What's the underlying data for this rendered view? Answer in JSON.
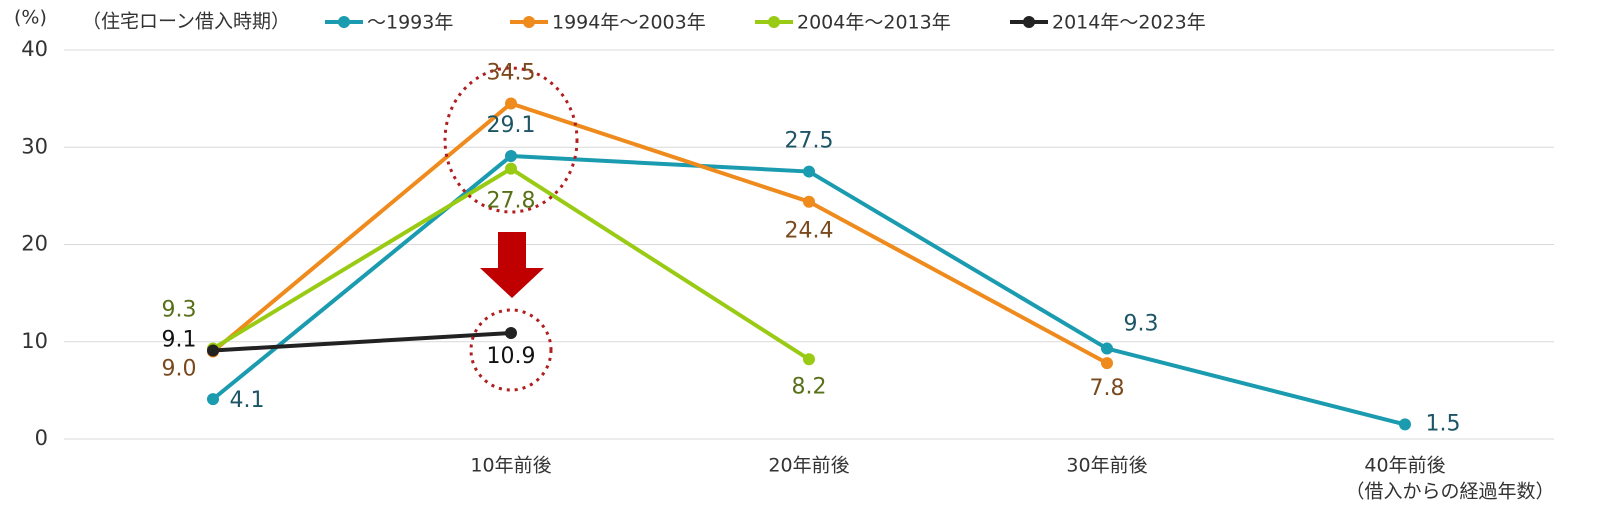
{
  "chart_data": {
    "type": "line",
    "y_label": "(%)",
    "legend_title": "（住宅ローン借入時期）",
    "x_label": "（借入からの経過年数）",
    "categories": [
      null,
      "10年前後",
      "20年前後",
      "30年前後",
      "40年前後"
    ],
    "ylim": [
      0,
      40
    ],
    "yticks": [
      0,
      10,
      20,
      30,
      40
    ],
    "grid": true,
    "legend": "top",
    "series": [
      {
        "name": "～1993年",
        "color": "#1a9bb0",
        "label_color": "#1d5566",
        "values": [
          4.1,
          29.1,
          27.5,
          9.3,
          1.5
        ],
        "value_labels": [
          "4.1",
          "29.1",
          "27.5",
          "9.3",
          "1.5"
        ]
      },
      {
        "name": "1994年～2003年",
        "color": "#ef8a1c",
        "label_color": "#7a4a1e",
        "values": [
          9.0,
          34.5,
          24.4,
          7.8,
          null
        ],
        "value_labels": [
          "9.0",
          "34.5",
          "24.4",
          "7.8",
          null
        ]
      },
      {
        "name": "2004年～2013年",
        "color": "#9acb14",
        "label_color": "#587018",
        "values": [
          9.3,
          27.8,
          8.2,
          null,
          null
        ],
        "value_labels": [
          "9.3",
          "27.8",
          "8.2",
          null,
          null
        ]
      },
      {
        "name": "2014年～2023年",
        "color": "#222222",
        "label_color": "#111111",
        "values": [
          9.1,
          10.9,
          null,
          null,
          null
        ],
        "value_labels": [
          "9.1",
          "10.9",
          null,
          null,
          null
        ]
      }
    ]
  }
}
